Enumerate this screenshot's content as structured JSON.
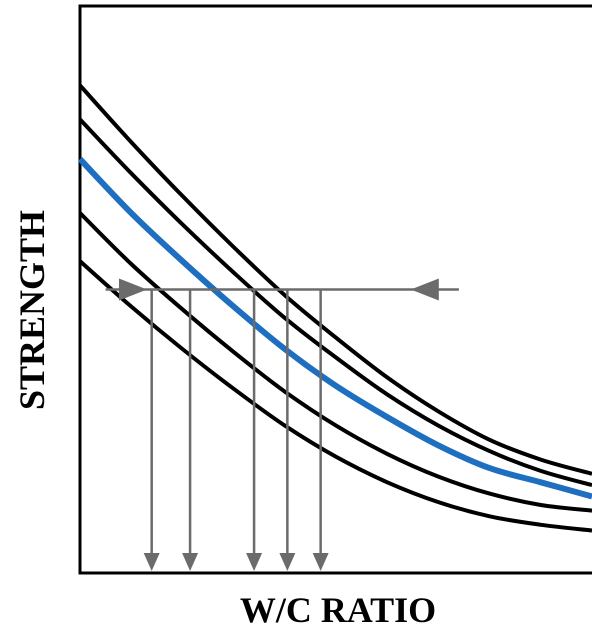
{
  "chart_data": {
    "type": "line",
    "title": "",
    "xlabel": "W/C RATIO",
    "ylabel": "STRENGTH",
    "xlim": [
      0,
      1
    ],
    "ylim": [
      0,
      1
    ],
    "grid": false,
    "legend": "none",
    "ticks_shown": false,
    "colors": {
      "curve": "#000000",
      "highlight": "#1f6fc0",
      "guide": "#6b6b6b",
      "axis": "#000000"
    },
    "series": [
      {
        "highlight": false,
        "points": [
          [
            0.0,
            0.86
          ],
          [
            0.1,
            0.76
          ],
          [
            0.2,
            0.665
          ],
          [
            0.3,
            0.575
          ],
          [
            0.4,
            0.49
          ],
          [
            0.5,
            0.415
          ],
          [
            0.6,
            0.345
          ],
          [
            0.7,
            0.285
          ],
          [
            0.8,
            0.235
          ],
          [
            0.9,
            0.2
          ],
          [
            1.0,
            0.175
          ]
        ]
      },
      {
        "highlight": false,
        "points": [
          [
            0.0,
            0.8
          ],
          [
            0.1,
            0.705
          ],
          [
            0.2,
            0.615
          ],
          [
            0.3,
            0.53
          ],
          [
            0.4,
            0.45
          ],
          [
            0.5,
            0.38
          ],
          [
            0.6,
            0.315
          ],
          [
            0.7,
            0.26
          ],
          [
            0.8,
            0.215
          ],
          [
            0.9,
            0.18
          ],
          [
            1.0,
            0.155
          ]
        ]
      },
      {
        "highlight": true,
        "points": [
          [
            0.0,
            0.73
          ],
          [
            0.1,
            0.635
          ],
          [
            0.2,
            0.55
          ],
          [
            0.3,
            0.47
          ],
          [
            0.4,
            0.395
          ],
          [
            0.5,
            0.33
          ],
          [
            0.6,
            0.275
          ],
          [
            0.7,
            0.225
          ],
          [
            0.8,
            0.185
          ],
          [
            0.9,
            0.16
          ],
          [
            1.0,
            0.135
          ]
        ]
      },
      {
        "highlight": false,
        "points": [
          [
            0.0,
            0.635
          ],
          [
            0.1,
            0.545
          ],
          [
            0.2,
            0.465
          ],
          [
            0.3,
            0.39
          ],
          [
            0.4,
            0.32
          ],
          [
            0.5,
            0.26
          ],
          [
            0.6,
            0.21
          ],
          [
            0.7,
            0.17
          ],
          [
            0.8,
            0.14
          ],
          [
            0.9,
            0.12
          ],
          [
            1.0,
            0.11
          ]
        ]
      },
      {
        "highlight": false,
        "points": [
          [
            0.0,
            0.55
          ],
          [
            0.1,
            0.47
          ],
          [
            0.2,
            0.395
          ],
          [
            0.3,
            0.325
          ],
          [
            0.4,
            0.26
          ],
          [
            0.5,
            0.205
          ],
          [
            0.6,
            0.16
          ],
          [
            0.7,
            0.125
          ],
          [
            0.8,
            0.1
          ],
          [
            0.9,
            0.085
          ],
          [
            1.0,
            0.075
          ]
        ]
      }
    ],
    "reference_line": {
      "y": 0.5,
      "x_start": 0.05,
      "x_end": 0.74,
      "arrow_positions": [
        0.08,
        0.65
      ]
    },
    "drop_lines_x": [
      0.14,
      0.215,
      0.34,
      0.405,
      0.47
    ]
  }
}
